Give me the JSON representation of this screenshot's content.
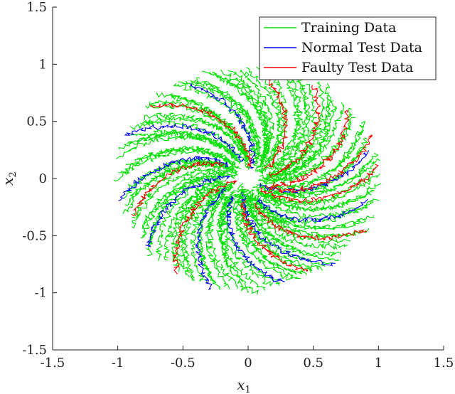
{
  "chart_data": {
    "type": "line",
    "title": "",
    "xlabel": {
      "base": "x",
      "sub": "1"
    },
    "ylabel": {
      "base": "x",
      "sub": "2"
    },
    "xlim": [
      -1.5,
      1.5
    ],
    "ylim": [
      -1.5,
      1.5
    ],
    "xticks": [
      "-1.5",
      "-1",
      "-0.5",
      "0",
      "0.5",
      "1",
      "1.5"
    ],
    "yticks": [
      "1.5",
      "1",
      "0.5",
      "0",
      "-0.5",
      "-1",
      "-1.5"
    ],
    "grid": false,
    "legend_position": "top-right",
    "legend": [
      {
        "label": "Training Data",
        "color": "#00e000"
      },
      {
        "label": "Normal Test Data",
        "color": "#0000ff"
      },
      {
        "label": "Faulty Test Data",
        "color": "#ff0000"
      }
    ],
    "series": [
      {
        "name": "Training Data",
        "color": "#00e000",
        "start_angles_deg": [
          2,
          10,
          18,
          26,
          34,
          42,
          50,
          58,
          66,
          74,
          82,
          90,
          98,
          106,
          114,
          122,
          130,
          138,
          146,
          154,
          162,
          170,
          178,
          186,
          194,
          202,
          210,
          218,
          226,
          234,
          242,
          250,
          258,
          266,
          274,
          282,
          290,
          298,
          306,
          314,
          322,
          330,
          338,
          346,
          354
        ]
      },
      {
        "name": "Normal Test Data",
        "color": "#0000ff",
        "start_angles_deg": [
          -12,
          14,
          118,
          158,
          192,
          218,
          254,
          286,
          312
        ]
      },
      {
        "name": "Faulty Test Data",
        "color": "#ff0000",
        "start_angles_deg": [
          6,
          22,
          38,
          58,
          84,
          140,
          200,
          236,
          300,
          334
        ]
      }
    ]
  }
}
